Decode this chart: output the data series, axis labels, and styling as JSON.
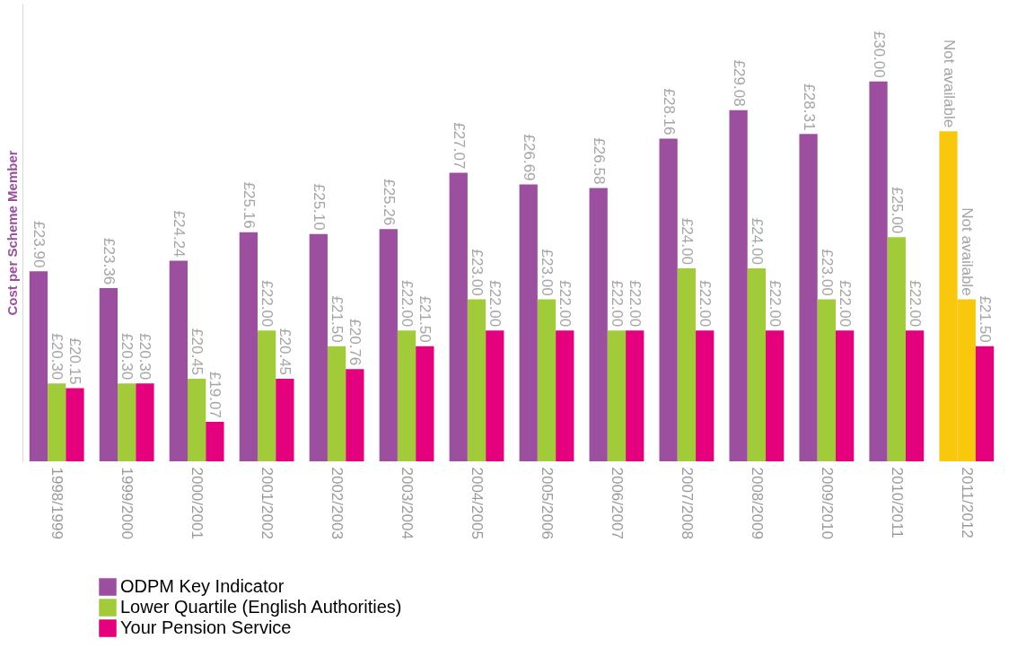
{
  "chart_data": {
    "type": "bar",
    "ylabel": "Cost per Scheme Member",
    "categories": [
      "1998/1999",
      "1999/2000",
      "2000/2001",
      "2001/2002",
      "2002/2003",
      "2003/2004",
      "2004/2005",
      "2005/2006",
      "2006/2007",
      "2007/2008",
      "2008/2009",
      "2009/2010",
      "2010/2011",
      "2011/2012"
    ],
    "series": [
      {
        "name": "ODPM Key Indicator",
        "color": "#9c4f9f",
        "colors": [
          "#9c4f9f",
          "#9c4f9f",
          "#9c4f9f",
          "#9c4f9f",
          "#9c4f9f",
          "#9c4f9f",
          "#9c4f9f",
          "#9c4f9f",
          "#9c4f9f",
          "#9c4f9f",
          "#9c4f9f",
          "#9c4f9f",
          "#9c4f9f",
          "#f9c80e"
        ],
        "values": [
          23.9,
          23.36,
          24.24,
          25.16,
          25.1,
          25.26,
          27.07,
          26.69,
          26.58,
          28.16,
          29.08,
          28.31,
          30.0,
          28.4
        ],
        "value_labels": [
          "£23.90",
          "£23.36",
          "£24.24",
          "£25.16",
          "£25.10",
          "£25.26",
          "£27.07",
          "£26.69",
          "£26.58",
          "£28.16",
          "£29.08",
          "£28.31",
          "£30.00",
          "Not available"
        ]
      },
      {
        "name": "Lower Quartile (English Authorities)",
        "color": "#a2cb3a",
        "colors": [
          "#a2cb3a",
          "#a2cb3a",
          "#a2cb3a",
          "#a2cb3a",
          "#a2cb3a",
          "#a2cb3a",
          "#a2cb3a",
          "#a2cb3a",
          "#a2cb3a",
          "#a2cb3a",
          "#a2cb3a",
          "#a2cb3a",
          "#a2cb3a",
          "#f9c80e"
        ],
        "values": [
          20.3,
          20.3,
          20.45,
          22.0,
          21.5,
          22.0,
          23.0,
          23.0,
          22.0,
          24.0,
          24.0,
          23.0,
          25.0,
          23.0
        ],
        "value_labels": [
          "£20.30",
          "£20.30",
          "£20.45",
          "£22.00",
          "£21.50",
          "£22.00",
          "£23.00",
          "£23.00",
          "£22.00",
          "£24.00",
          "£24.00",
          "£23.00",
          "£25.00",
          "Not available"
        ]
      },
      {
        "name": "Your Pension Service",
        "color": "#e5007d",
        "values": [
          20.15,
          20.3,
          19.07,
          20.45,
          20.76,
          21.5,
          22.0,
          22.0,
          22.0,
          22.0,
          22.0,
          22.0,
          22.0,
          21.5
        ],
        "value_labels": [
          "£20.15",
          "£20.30",
          "£19.07",
          "£20.45",
          "£20.76",
          "£21.50",
          "£22.00",
          "£22.00",
          "£22.00",
          "£22.00",
          "£22.00",
          "£22.00",
          "£22.00",
          "£21.50"
        ]
      }
    ],
    "ylim": [
      17.8,
      32.5
    ],
    "tick_labels": "x",
    "grid": false,
    "legend": "bottom left"
  }
}
